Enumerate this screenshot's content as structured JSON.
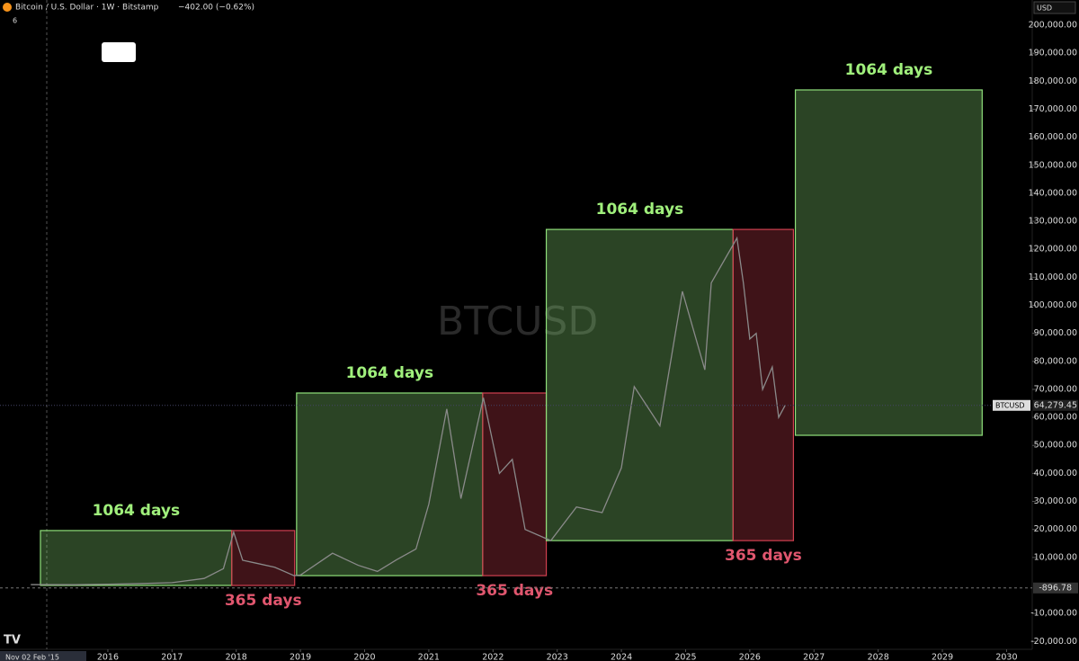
{
  "header": {
    "symbol": "Bitcoin / U.S. Dollar · 1W · Bitstamp",
    "change": "−402.00 (−0.62%)",
    "currency": "USD",
    "indicators": "6"
  },
  "chart_data": {
    "type": "line",
    "watermark": "BTCUSD",
    "crosshair_label": "Nov 02 Feb '15",
    "xlim": [
      2014.32,
      2030.4
    ],
    "ylim": [
      -22800,
      209000
    ],
    "xticks": [
      2016,
      2017,
      2018,
      2019,
      2020,
      2021,
      2022,
      2023,
      2024,
      2025,
      2026,
      2027,
      2028,
      2029,
      2030
    ],
    "yticks": [
      {
        "value": 200000,
        "label": "200,000.00"
      },
      {
        "value": 190000,
        "label": "190,000.00"
      },
      {
        "value": 180000,
        "label": "180,000.00"
      },
      {
        "value": 170000,
        "label": "170,000.00"
      },
      {
        "value": 160000,
        "label": "160,000.00"
      },
      {
        "value": 150000,
        "label": "150,000.00"
      },
      {
        "value": 140000,
        "label": "140,000.00"
      },
      {
        "value": 130000,
        "label": "130,000.00"
      },
      {
        "value": 120000,
        "label": "120,000.00"
      },
      {
        "value": 110000,
        "label": "110,000.00"
      },
      {
        "value": 100000,
        "label": "100,000.00"
      },
      {
        "value": 90000,
        "label": "90,000.00"
      },
      {
        "value": 80000,
        "label": "80,000.00"
      },
      {
        "value": 70000,
        "label": "70,000.00"
      },
      {
        "value": 60000,
        "label": "60,000.00"
      },
      {
        "value": 50000,
        "label": "50,000.00"
      },
      {
        "value": 40000,
        "label": "40,000.00"
      },
      {
        "value": 30000,
        "label": "30,000.00"
      },
      {
        "value": 20000,
        "label": "20,000.00"
      },
      {
        "value": 10000,
        "label": "10,000.00"
      },
      {
        "value": -10000,
        "label": "-10,000.00"
      },
      {
        "value": -20000,
        "label": "-20,000.00"
      }
    ],
    "series": [
      {
        "name": "BTCUSD",
        "color": "#8a8a8a",
        "x": [
          2014.8,
          2015.5,
          2016,
          2016.5,
          2017,
          2017.5,
          2017.8,
          2017.96,
          2018.1,
          2018.3,
          2018.6,
          2018.9,
          2019.0,
          2019.5,
          2019.9,
          2020.2,
          2020.5,
          2020.8,
          2021.0,
          2021.28,
          2021.5,
          2021.85,
          2022.1,
          2022.3,
          2022.5,
          2022.9,
          2023.3,
          2023.7,
          2024.0,
          2024.2,
          2024.6,
          2024.95,
          2025.3,
          2025.4,
          2025.8,
          2025.9,
          2026.0,
          2026.1,
          2026.2,
          2026.35,
          2026.45,
          2026.55
        ],
        "values": [
          300,
          250,
          430,
          650,
          1000,
          2500,
          6000,
          19000,
          9000,
          8000,
          6500,
          3500,
          3700,
          11500,
          7200,
          5000,
          9200,
          13000,
          29000,
          63000,
          31000,
          67000,
          40000,
          45000,
          20000,
          16000,
          28000,
          26000,
          42000,
          71000,
          57000,
          105000,
          77000,
          108000,
          124000,
          108000,
          88000,
          90000,
          70000,
          78000,
          60000,
          64279.45
        ]
      }
    ],
    "last_price": {
      "name": "BTCUSD",
      "value": 64279.45,
      "label": "64,279.45"
    },
    "low_marker": -896.78,
    "boxes": [
      {
        "label": "1064 days",
        "start": 2014.95,
        "end": 2017.93,
        "low": 0,
        "high": 19600,
        "color": "#8fe07a"
      },
      {
        "label": "365 days",
        "start": 2017.93,
        "end": 2018.91,
        "low": 0,
        "high": 19600,
        "color": "#d04050"
      },
      {
        "label": "1064 days",
        "start": 2018.94,
        "end": 2021.84,
        "low": 3500,
        "high": 68700,
        "color": "#8fe07a"
      },
      {
        "label": "365 days",
        "start": 2021.84,
        "end": 2022.83,
        "low": 3500,
        "high": 68700,
        "color": "#d04050"
      },
      {
        "label": "1064 days",
        "start": 2022.83,
        "end": 2025.74,
        "low": 16000,
        "high": 127100,
        "color": "#8fe07a"
      },
      {
        "label": "365 days",
        "start": 2025.74,
        "end": 2026.68,
        "low": 16000,
        "high": 127100,
        "color": "#d04050"
      },
      {
        "label": "1064 days",
        "start": 2026.71,
        "end": 2029.62,
        "low": 53600,
        "high": 176900,
        "color": "#8fe07a"
      }
    ]
  }
}
